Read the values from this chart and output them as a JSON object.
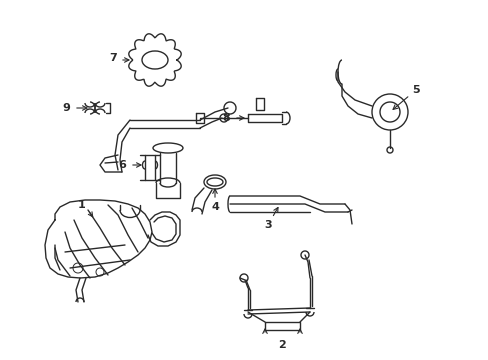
{
  "bg_color": "#ffffff",
  "line_color": "#2a2a2a",
  "line_width": 1.0,
  "figsize": [
    4.89,
    3.6
  ],
  "dpi": 100
}
